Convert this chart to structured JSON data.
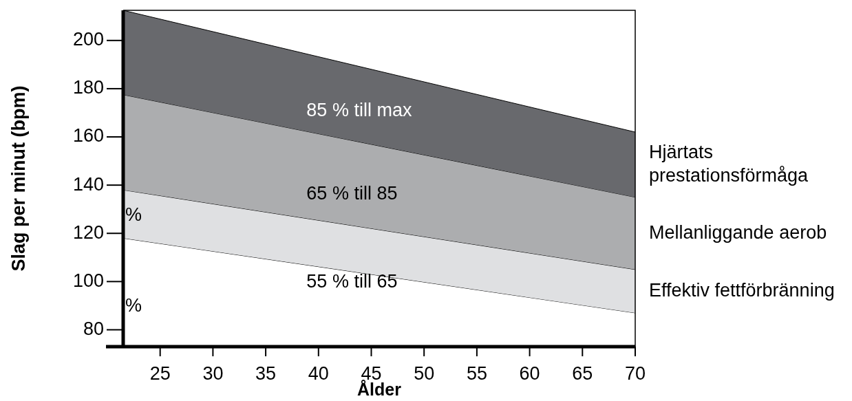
{
  "chart_data": {
    "type": "area",
    "xlabel": "Ålder",
    "ylabel": "Slag per minut (bpm)",
    "x": [
      21.5,
      70
    ],
    "series": [
      {
        "name": "Hjärtats prestationsförmåga",
        "color": "#68696d",
        "values": [
          212.5,
          162
        ]
      },
      {
        "name": "Mellanliggande aerob",
        "color": "#acadaf",
        "values": [
          177.5,
          135
        ]
      },
      {
        "name": "Effektiv fettförbränning",
        "color": "#dfe0e2",
        "values": [
          138,
          105
        ]
      },
      {
        "color": "#ffffff",
        "values": [
          118,
          87
        ]
      }
    ],
    "xlim": [
      21.5,
      70
    ],
    "xticks": [
      25,
      30,
      35,
      40,
      45,
      50,
      55,
      60,
      65,
      70
    ],
    "ylim": [
      73,
      212.5
    ],
    "yticks": [
      80,
      100,
      120,
      140,
      160,
      180,
      200
    ],
    "annotations": [
      "85 % till max",
      "65 % till 85",
      "55 % till 65",
      "%",
      "%"
    ],
    "legend": false,
    "grid": false
  }
}
